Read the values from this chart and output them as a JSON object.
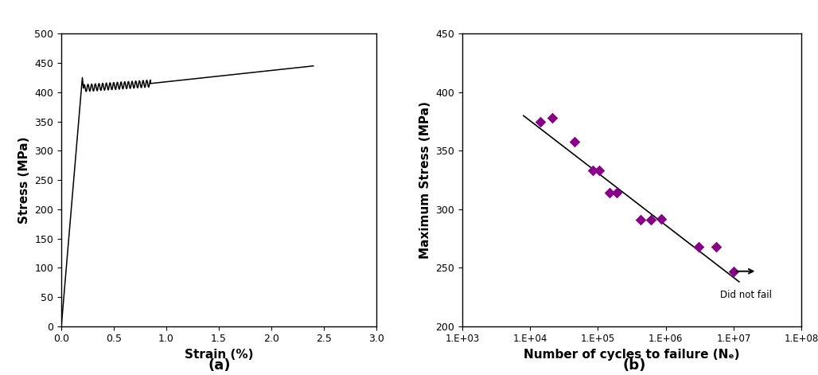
{
  "panel_a": {
    "xlabel": "Strain (%)",
    "ylabel": "Stress (MPa)",
    "xlim": [
      0,
      3
    ],
    "ylim": [
      0,
      500
    ],
    "xticks": [
      0,
      0.5,
      1.0,
      1.5,
      2.0,
      2.5,
      3.0
    ],
    "yticks": [
      0,
      50,
      100,
      150,
      200,
      250,
      300,
      350,
      400,
      450,
      500
    ],
    "label": "(a)",
    "curve_color": "#000000"
  },
  "panel_b": {
    "xlabel": "Number of cycles to failure (Nₑ)",
    "ylabel": "Maximum Stress (MPa)",
    "ylim": [
      200,
      450
    ],
    "yticks": [
      200,
      250,
      300,
      350,
      400,
      450
    ],
    "xtick_labels": [
      "1.E+03",
      "1.E+04",
      "1.E+05",
      "1.E+06",
      "1.E+07",
      "1.E+08"
    ],
    "xtick_vals": [
      1000,
      10000,
      100000,
      1000000,
      10000000,
      100000000
    ],
    "label": "(b)",
    "scatter_color": "#880088",
    "line_color": "#000000",
    "scatter_points": [
      [
        14000.0,
        375
      ],
      [
        21000.0,
        378
      ],
      [
        45000.0,
        358
      ],
      [
        85000.0,
        333
      ],
      [
        105000.0,
        333
      ],
      [
        150000.0,
        314
      ],
      [
        190000.0,
        314
      ],
      [
        420000.0,
        291
      ],
      [
        600000.0,
        291
      ],
      [
        850000.0,
        292
      ],
      [
        3000000.0,
        268
      ],
      [
        5500000.0,
        268
      ],
      [
        10000000.0,
        247
      ]
    ],
    "did_not_fail_x": 10000000.0,
    "did_not_fail_y": 247,
    "did_not_fail_text": "Did not fail",
    "fit_line_x": [
      8000,
      12000000.0
    ],
    "fit_line_y": [
      380,
      238
    ]
  }
}
